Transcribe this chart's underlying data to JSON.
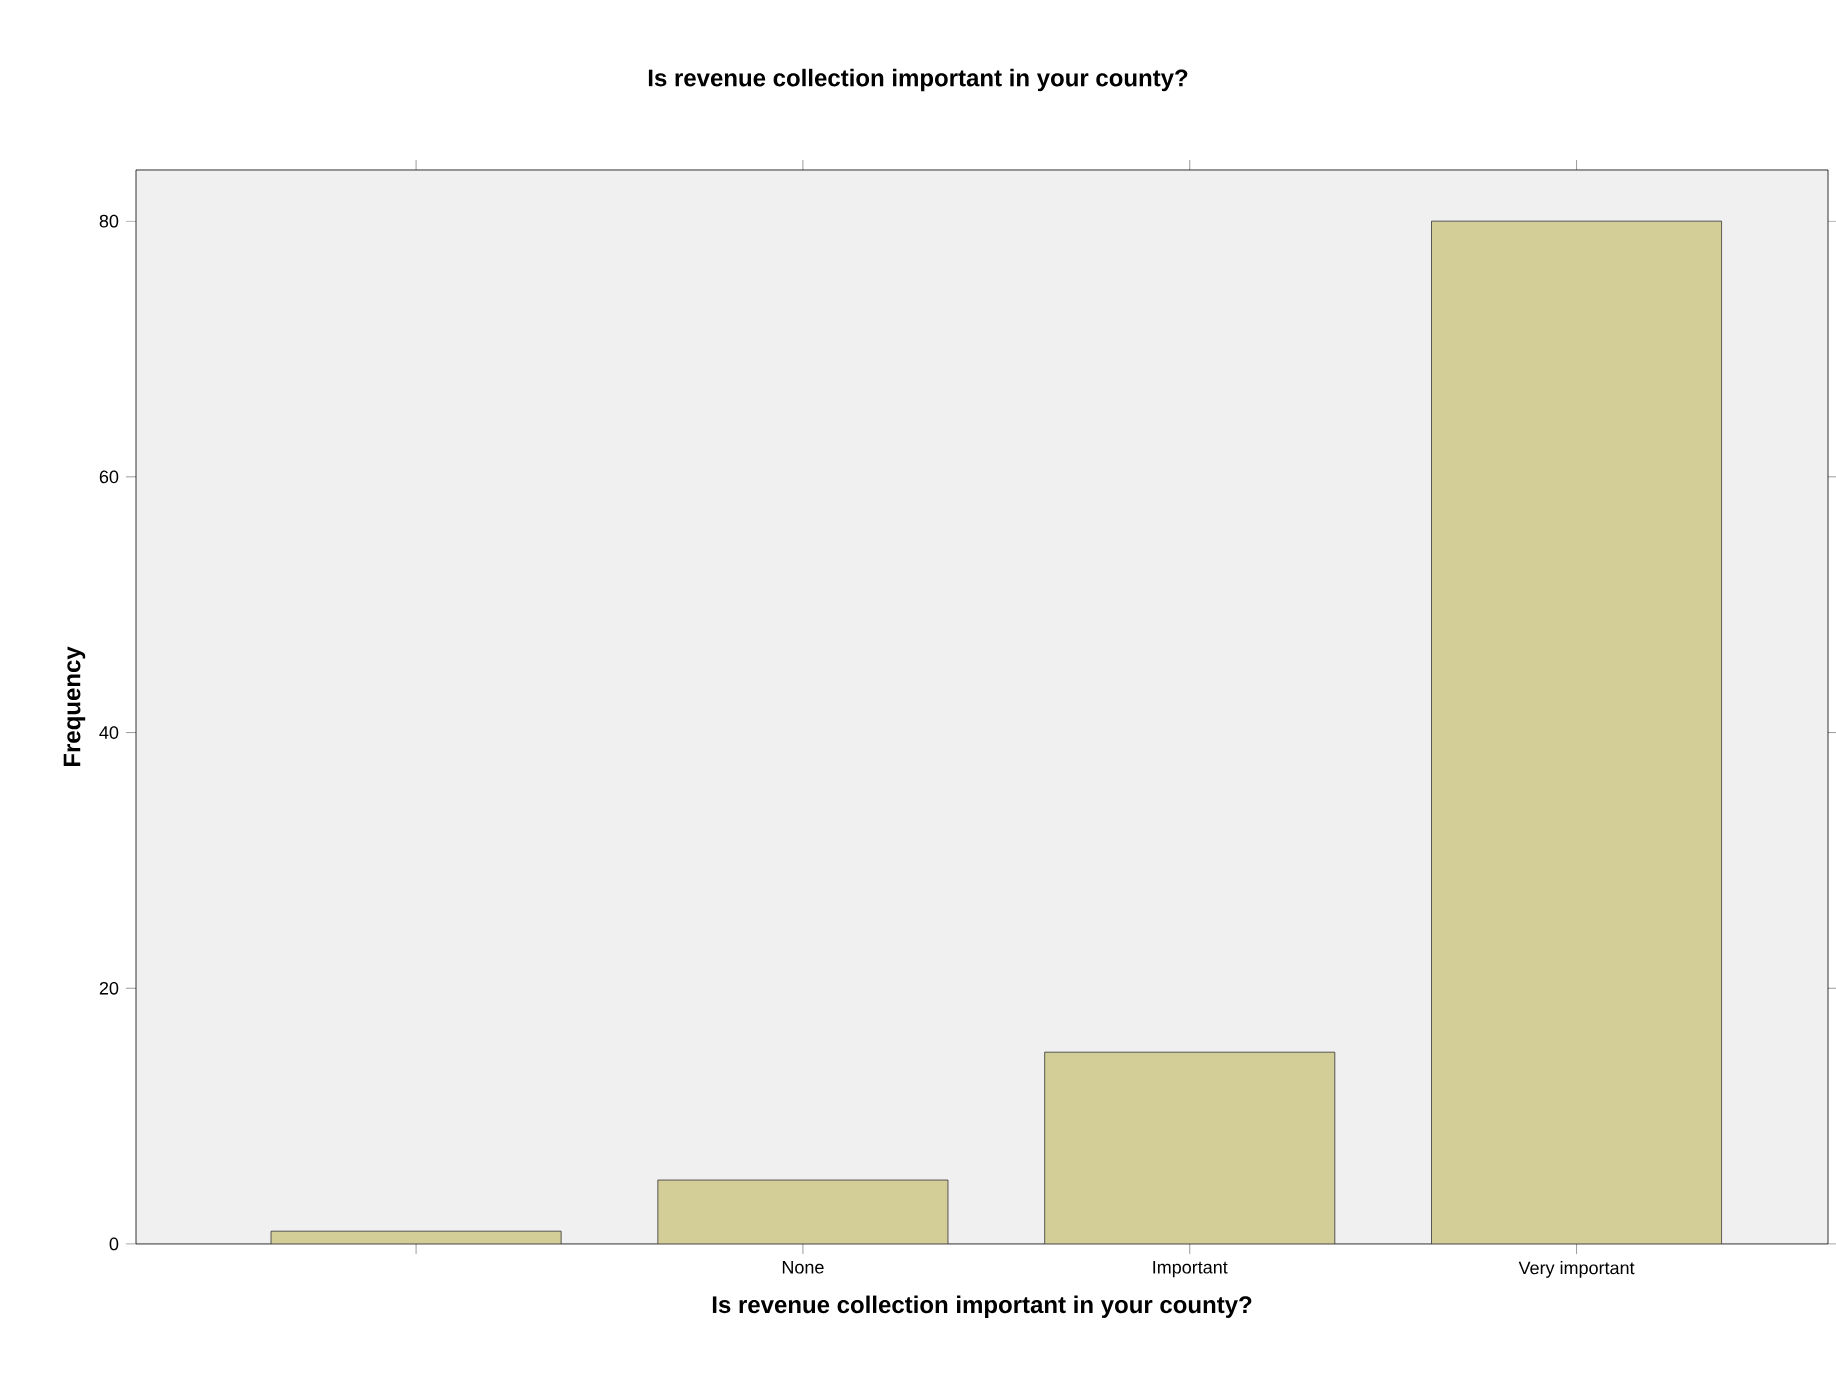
{
  "chart_data": {
    "type": "bar",
    "title": "Is revenue collection important in your county?",
    "xlabel": "Is revenue collection important in your county?",
    "ylabel": "Frequency",
    "categories": [
      null,
      "None",
      "Important",
      "Very important"
    ],
    "values": [
      1,
      5,
      15,
      80
    ],
    "color": "#d3ce97",
    "ylim": [
      0,
      84
    ],
    "yticks": [
      0,
      20,
      40,
      60,
      80
    ]
  }
}
